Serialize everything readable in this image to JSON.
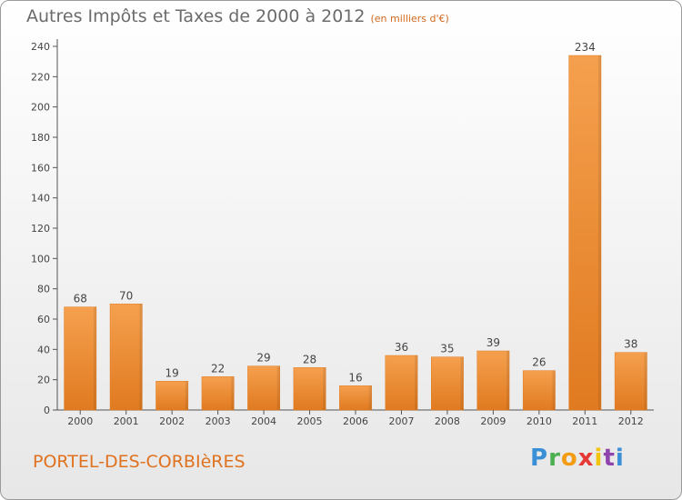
{
  "title": "Autres Impôts et Taxes de 2000 à 2012",
  "subtitle": "(en milliers d'€)",
  "place": "PORTEL-DES-CORBIèRES",
  "logo": {
    "letters": [
      "P",
      "r",
      "o",
      "x",
      "i",
      "t",
      "i"
    ],
    "colors": [
      "#3a8fd6",
      "#4caf50",
      "#f39c12",
      "#e53935",
      "#f1c40f",
      "#8e44ad",
      "#3a8fd6"
    ]
  },
  "colors": {
    "bar_light": "#f5a04e",
    "bar_dark": "#e07a20",
    "axis": "#555555",
    "grid": "#cccccc"
  },
  "chart_data": {
    "type": "bar",
    "categories": [
      "2000",
      "2001",
      "2002",
      "2003",
      "2004",
      "2005",
      "2006",
      "2007",
      "2008",
      "2009",
      "2010",
      "2011",
      "2012"
    ],
    "values": [
      68,
      70,
      19,
      22,
      29,
      28,
      16,
      36,
      35,
      39,
      26,
      234,
      38
    ],
    "title": "Autres Impôts et Taxes de 2000 à 2012",
    "xlabel": "",
    "ylabel": "",
    "ylim": [
      0,
      240
    ],
    "yticks": [
      0,
      20,
      40,
      60,
      80,
      100,
      120,
      140,
      160,
      180,
      200,
      220,
      240
    ],
    "grid": false,
    "data_labels": true
  }
}
